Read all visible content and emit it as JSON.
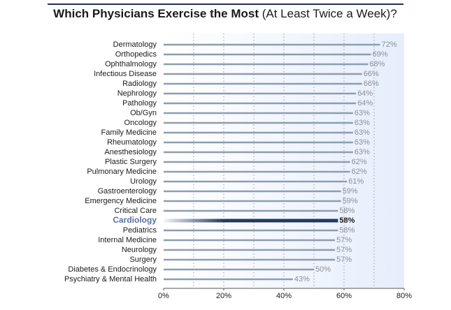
{
  "chart_data": {
    "type": "bar",
    "orientation": "horizontal",
    "title": "Which Physicians Exercise the Most",
    "subtitle": "(At Least Twice a Week)?",
    "categories": [
      "Dermatology",
      "Orthopedics",
      "Ophthalmology",
      "Infectious Disease",
      "Radiology",
      "Nephrology",
      "Pathology",
      "Ob/Gyn",
      "Oncology",
      "Family Medicine",
      "Rheumatology",
      "Anesthesiology",
      "Plastic Surgery",
      "Pulmonary Medicine",
      "Urology",
      "Gastroenterology",
      "Emergency Medicine",
      "Critical Care",
      "Cardiology",
      "Pediatrics",
      "Internal Medicine",
      "Neurology",
      "Surgery",
      "Diabetes & Endocrinology",
      "Psychiatry & Mental Health"
    ],
    "values": [
      72,
      69,
      68,
      66,
      66,
      64,
      64,
      63,
      63,
      63,
      63,
      63,
      62,
      62,
      61,
      59,
      59,
      58,
      58,
      58,
      57,
      57,
      57,
      50,
      43
    ],
    "value_labels": [
      "72%",
      "69%",
      "68%",
      "66%",
      "66%",
      "64%",
      "64%",
      "63%",
      "63%",
      "63%",
      "63%",
      "63%",
      "62%",
      "62%",
      "61%",
      "59%",
      "59%",
      "58%",
      "58%",
      "58%",
      "57%",
      "57%",
      "57%",
      "50%",
      "43%"
    ],
    "color": "#8e9db0",
    "highlight_index": 18,
    "highlight_color": "#213a5c",
    "highlight_label_color": "#5b6fa6",
    "xlim": [
      0,
      80
    ],
    "xticks": [
      {
        "value": 0,
        "label": "0%"
      },
      {
        "value": 20,
        "label": "20%"
      },
      {
        "value": 40,
        "label": "40%"
      },
      {
        "value": 60,
        "label": "60%"
      },
      {
        "value": 80,
        "label": "80%"
      }
    ],
    "minor_xticks": [
      10,
      30,
      50,
      70
    ],
    "grid": true
  }
}
